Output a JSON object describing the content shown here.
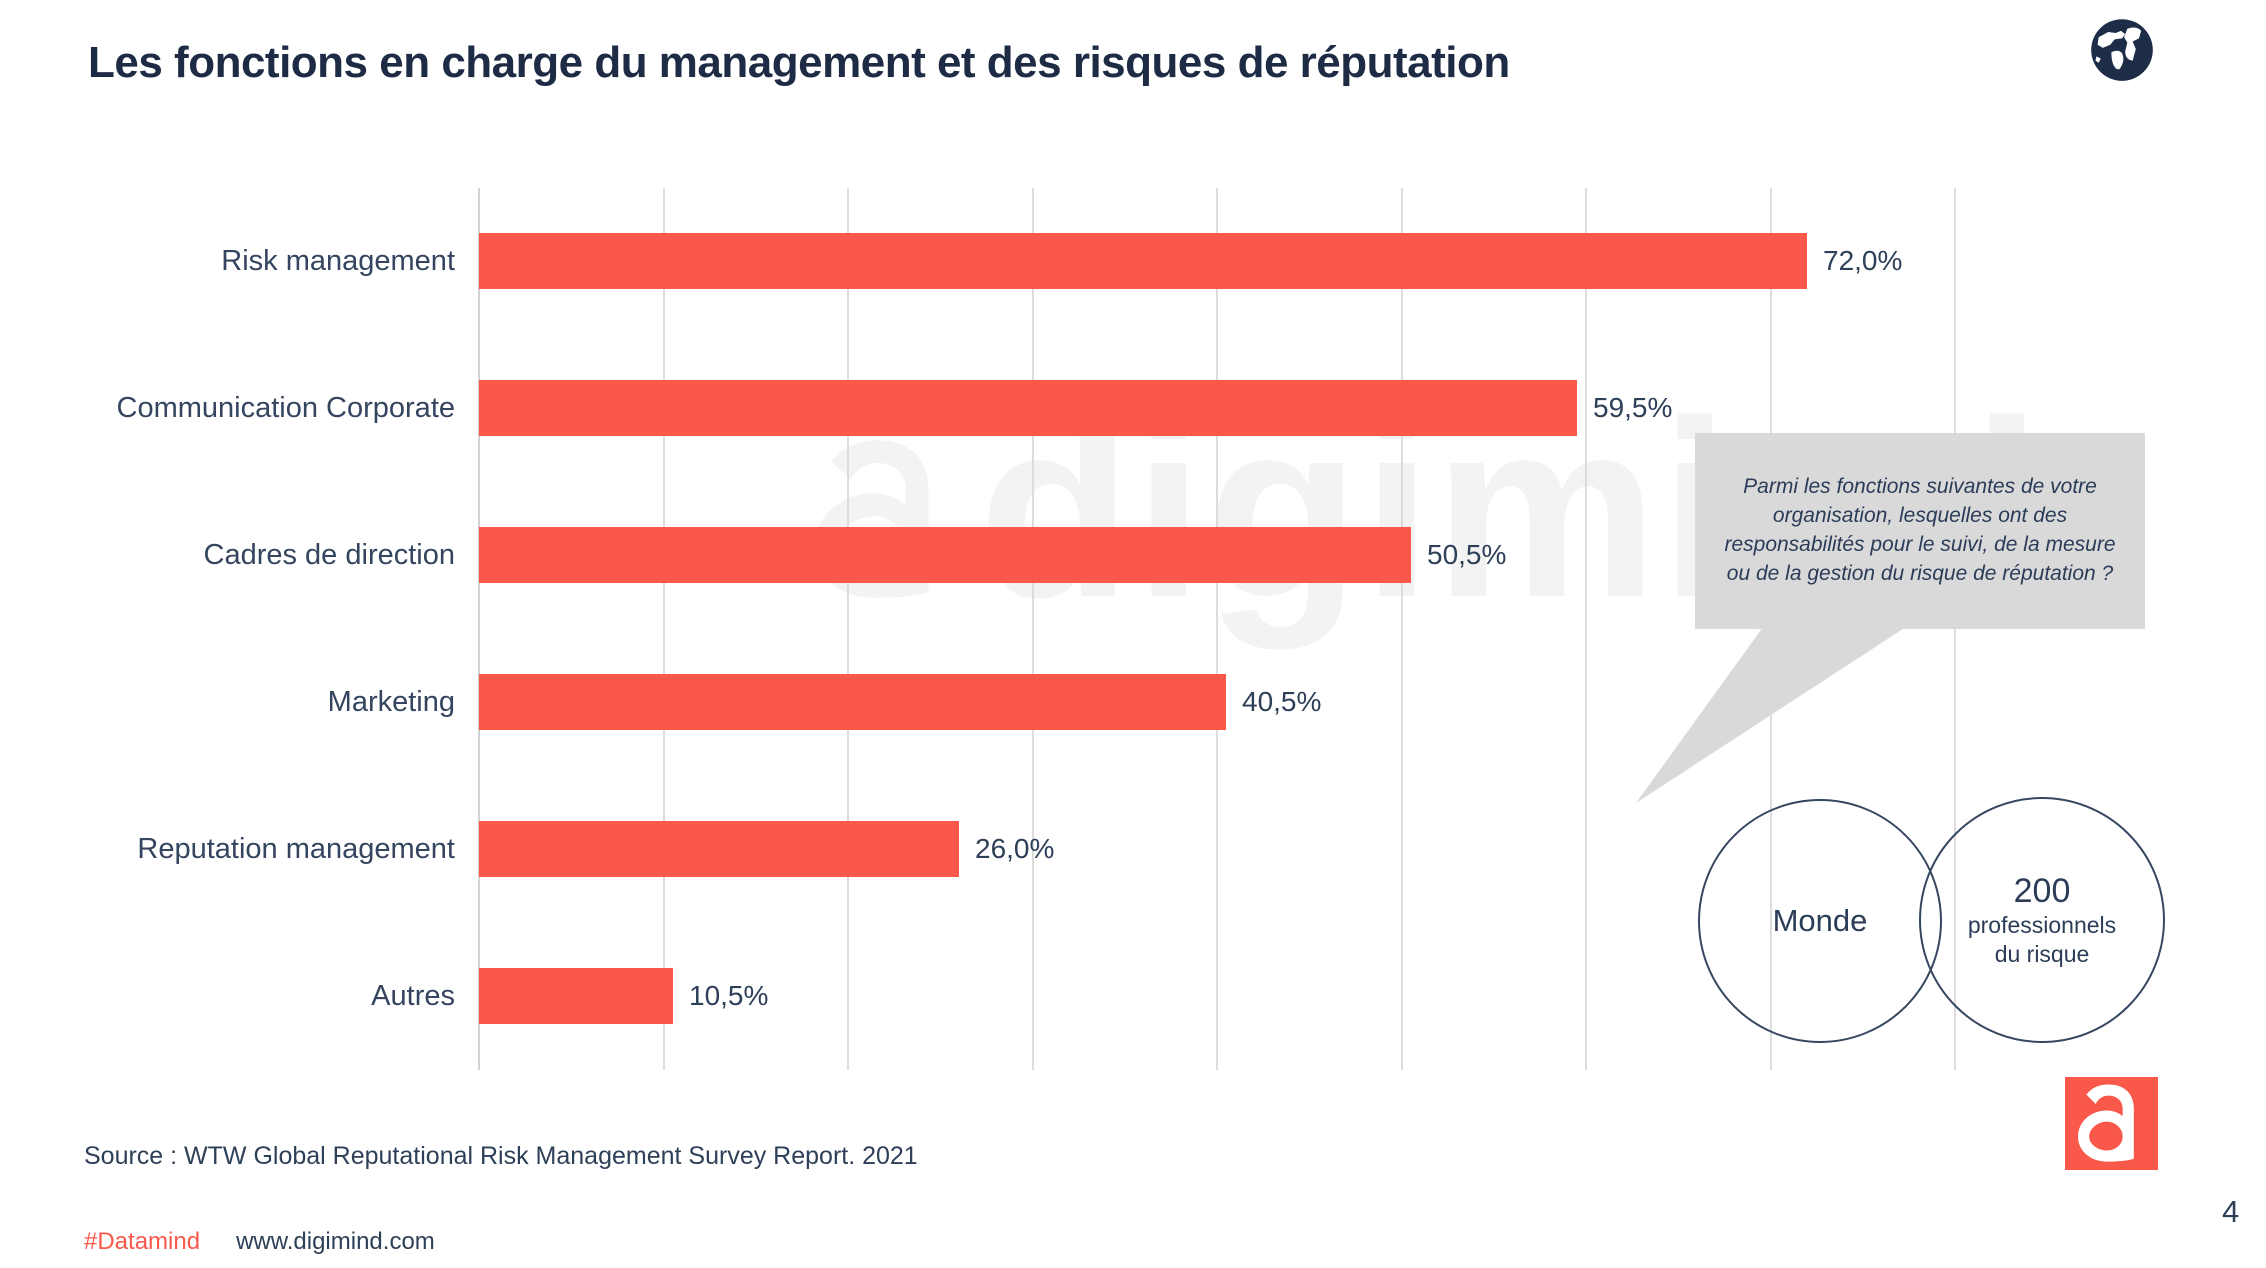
{
  "page": {
    "title": "Les fonctions en charge du management et des risques de réputation",
    "page_number": "4",
    "source": "Source : WTW Global Reputational Risk Management Survey Report. 2021",
    "hashtag": "#Datamind",
    "website": "www.digimind.com",
    "watermark_text": "digimind"
  },
  "chart_data": {
    "type": "bar",
    "orientation": "horizontal",
    "title": "Les fonctions en charge du management et des risques de réputation",
    "categories": [
      "Risk management",
      "Communication Corporate",
      "Cadres de direction",
      "Marketing",
      "Reputation management",
      "Autres"
    ],
    "values": [
      72.0,
      59.5,
      50.5,
      40.5,
      26.0,
      10.5
    ],
    "value_labels": [
      "72,0%",
      "59,5%",
      "50,5%",
      "40,5%",
      "26,0%",
      "10,5%"
    ],
    "unit": "%",
    "xlim": [
      0,
      80
    ],
    "gridline_interval": 10,
    "grid": true,
    "legend": false,
    "bar_color": "#f9584a",
    "label_color": "#35455f"
  },
  "annotation": {
    "question": "Parmi les fonctions suivantes de votre organisation, lesquelles ont des responsabilités  pour le suivi, de la mesure ou de la gestion du risque de réputation ?",
    "bubble_color": "#d9d9d9"
  },
  "venn": {
    "left_label": "Monde",
    "right_value": "200",
    "right_line1": "professionnels",
    "right_line2": "du risque"
  },
  "colors": {
    "accent_red": "#f9584a",
    "navy": "#1e2b45",
    "bubble_gray": "#d9d9d9"
  }
}
